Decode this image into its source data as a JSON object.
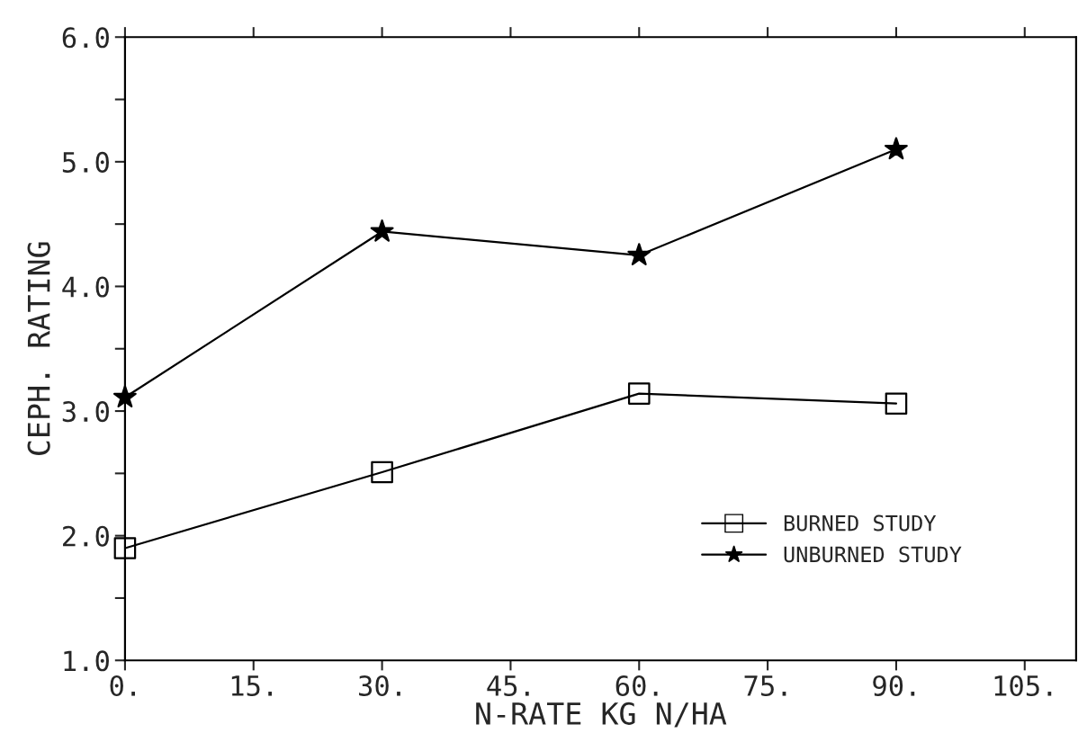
{
  "chart_data": {
    "type": "line",
    "xlabel": "N-RATE KG N/HA",
    "ylabel": "CEPH. RATING",
    "x": [
      0,
      30,
      60,
      90
    ],
    "series": [
      {
        "name": "BURNED STUDY",
        "color": "#000000",
        "marker": "square",
        "values": [
          1.9,
          2.51,
          3.14,
          3.06
        ]
      },
      {
        "name": "UNBURNED STUDY",
        "color": "#000000",
        "marker": "star",
        "values": [
          3.11,
          4.44,
          4.25,
          5.1
        ]
      }
    ],
    "xlim": [
      0,
      111
    ],
    "xticks": [
      {
        "value": 0,
        "label": "0."
      },
      {
        "value": 15,
        "label": "15."
      },
      {
        "value": 30,
        "label": "30."
      },
      {
        "value": 45,
        "label": "45."
      },
      {
        "value": 60,
        "label": "60."
      },
      {
        "value": 75,
        "label": "75."
      },
      {
        "value": 90,
        "label": "90."
      },
      {
        "value": 105,
        "label": "105."
      }
    ],
    "ylim": [
      1,
      6
    ],
    "yticks": [
      {
        "value": 1,
        "label": "1.0"
      },
      {
        "value": 1.5,
        "label": null
      },
      {
        "value": 2,
        "label": "2.0"
      },
      {
        "value": 2.5,
        "label": null
      },
      {
        "value": 3,
        "label": "3.0"
      },
      {
        "value": 3.5,
        "label": null
      },
      {
        "value": 4,
        "label": "4.0"
      },
      {
        "value": 4.5,
        "label": null
      },
      {
        "value": 5,
        "label": "5.0"
      },
      {
        "value": 5.5,
        "label": null
      },
      {
        "value": 6,
        "label": "6.0"
      }
    ],
    "grid": false,
    "legend": "bottom right",
    "line_style": "solid"
  }
}
